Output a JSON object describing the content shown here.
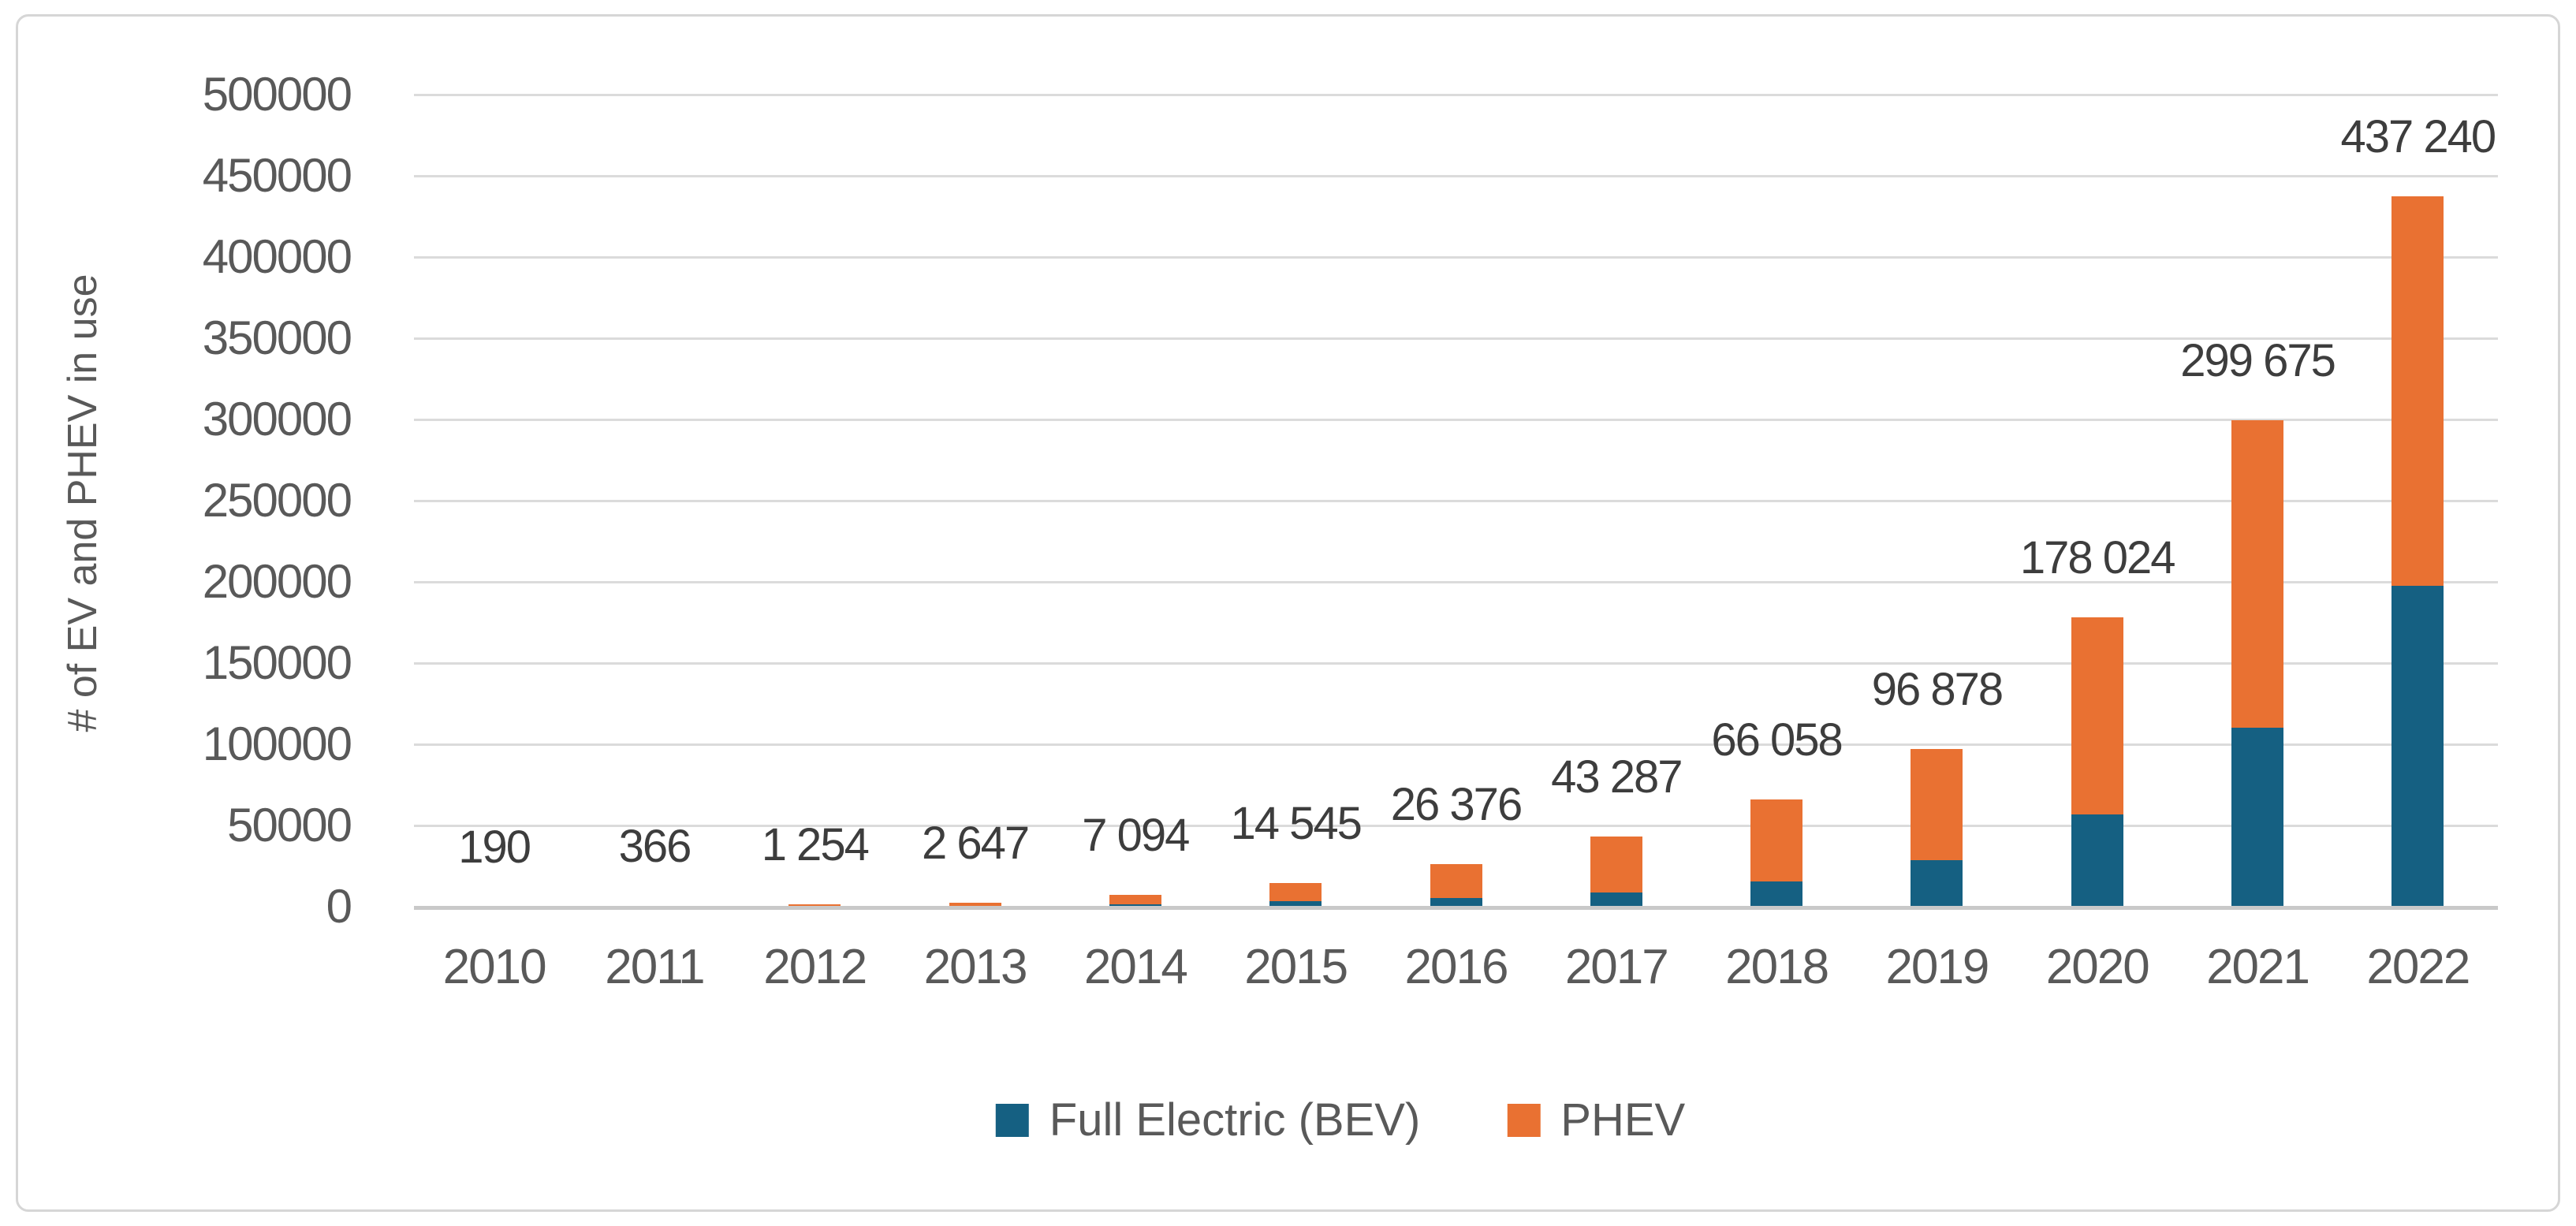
{
  "chart_data": {
    "type": "bar",
    "stacked": true,
    "title": "",
    "xlabel": "",
    "ylabel": "# of EV and PHEV in use",
    "categories": [
      "2010",
      "2011",
      "2012",
      "2013",
      "2014",
      "2015",
      "2016",
      "2017",
      "2018",
      "2019",
      "2020",
      "2021",
      "2022"
    ],
    "series": [
      {
        "name": "Full Electric (BEV)",
        "color": "#156082",
        "values": [
          45,
          90,
          300,
          640,
          1400,
          3500,
          5400,
          8600,
          15400,
          28600,
          56900,
          110000,
          197500
        ]
      },
      {
        "name": "PHEV",
        "color": "#E97132",
        "values": [
          145,
          276,
          954,
          2007,
          5694,
          11045,
          20976,
          34687,
          50658,
          68278,
          121124,
          189675,
          239740
        ]
      }
    ],
    "totals": [
      190,
      366,
      1254,
      2647,
      7094,
      14545,
      26376,
      43287,
      66058,
      96878,
      178024,
      299675,
      437240
    ],
    "total_labels": [
      "190",
      "366",
      "1 254",
      "2 647",
      "7 094",
      "14 545",
      "26 376",
      "43 287",
      "66 058",
      "96 878",
      "178 024",
      "299 675",
      "437 240"
    ],
    "ylim": [
      0,
      500000
    ],
    "ytick_step": 50000,
    "ytick_labels": [
      "0",
      "50000",
      "100000",
      "150000",
      "200000",
      "250000",
      "300000",
      "350000",
      "400000",
      "450000",
      "500000"
    ],
    "grid": "horizontal",
    "legend_position": "bottom"
  },
  "legend": {
    "bev_label": "Full Electric (BEV)",
    "phev_label": "PHEV"
  },
  "colors": {
    "bev": "#156082",
    "phev": "#E97132",
    "gridline": "#dbdbdb",
    "axis_text": "#595959",
    "data_label_text": "#3d3d3d",
    "frame_border": "#d6d6d6"
  }
}
